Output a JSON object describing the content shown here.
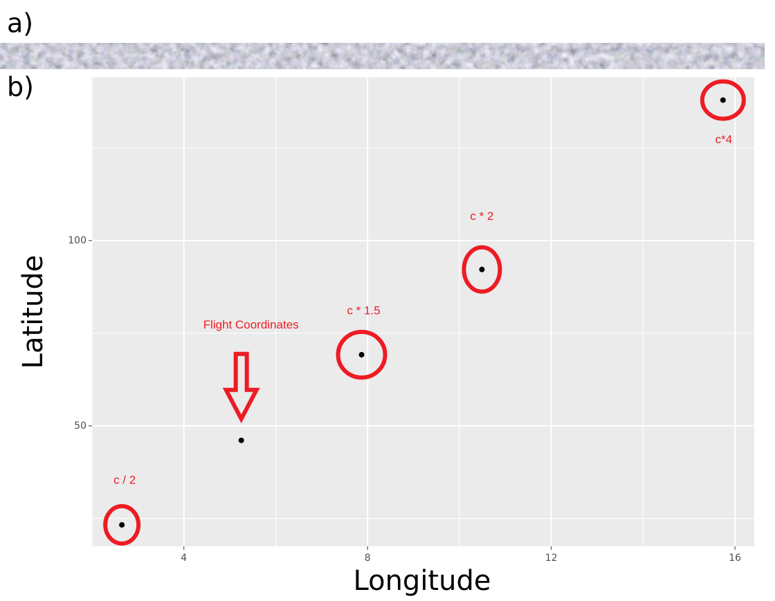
{
  "chart_data": {
    "type": "scatter",
    "panel_labels": [
      "a)",
      "b)"
    ],
    "x_label": "Longitude",
    "y_label": "Latitude",
    "x": [
      2.65,
      5.25,
      7.87,
      10.49,
      15.74
    ],
    "values": [
      23.3,
      46.1,
      69.2,
      92.2,
      137.9
    ],
    "color": "#000000",
    "annotations": [
      "c / 2",
      "Flight Coordinates",
      "c * 1.5",
      "c * 2",
      "c*4"
    ],
    "annotation_color": "#ed1c24",
    "xlim": [
      2.0,
      16.42
    ],
    "xticks": [
      4,
      8,
      12,
      16
    ],
    "ylim": [
      17.5,
      144.0
    ],
    "yticks": [
      50,
      100
    ],
    "grid": true
  }
}
